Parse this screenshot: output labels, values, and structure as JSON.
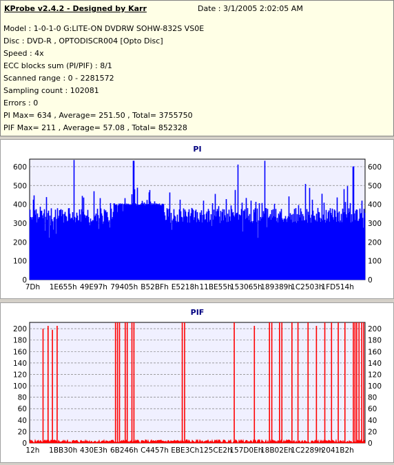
{
  "info": {
    "title": "KProbe v2.4.2 - Designed by Karr",
    "date": "Date : 3/1/2005 2:02:05 AM",
    "lines": [
      "Model : 1-0-1-0 G:LITE-ON DVDRW SOHW-832S  VS0E",
      "Disc : DVD-R , OPTODISCR004 [Opto Disc]",
      "Speed : 4x",
      "ECC blocks sum (PI/PIF) : 8/1",
      "Scanned range : 0 - 2281572",
      "Sampling count : 102081",
      "Errors : 0",
      "PI Max= 634 , Average= 251.50 , Total= 3755750",
      "PIF Max= 211 , Average= 57.08 , Total= 852328"
    ]
  },
  "colors": {
    "pi": "#0000ff",
    "pif": "#ff0000",
    "plot_bg": "#f0f0ff",
    "grid": "#808080",
    "title": "#000080"
  },
  "chart_data": [
    {
      "type": "area",
      "title": "PI",
      "ylim": [
        0,
        640
      ],
      "yticks": [
        0,
        100,
        200,
        300,
        400,
        500,
        600
      ],
      "xticks": [
        "7Dh",
        "1E655h",
        "49E97h",
        "79405h",
        "B52BFh",
        "E5218h",
        "11BE55h",
        "153065h",
        "189389h",
        "1C2503h",
        "1FD514h"
      ],
      "x_range": [
        125,
        2281572
      ],
      "baseline_low": 300,
      "baseline_high": 380,
      "plateau": {
        "from_fraction": 0.25,
        "to_fraction": 0.4,
        "value": 405
      },
      "max": 634,
      "peaks": [
        {
          "at_fraction": 0.131,
          "value": 634
        },
        {
          "at_fraction": 0.309,
          "value": 630
        },
        {
          "at_fraction": 0.62,
          "value": 610
        },
        {
          "at_fraction": 0.7,
          "value": 630
        },
        {
          "at_fraction": 0.964,
          "value": 600
        }
      ]
    },
    {
      "type": "bar",
      "title": "PIF",
      "ylim": [
        0,
        211
      ],
      "yticks": [
        0,
        20,
        40,
        60,
        80,
        100,
        120,
        140,
        160,
        180,
        200
      ],
      "xticks": [
        "12h",
        "1BB30h",
        "430E3h",
        "6B246h",
        "C4457h",
        "EBE3Ch",
        "125CE2h",
        "157D0Eh",
        "18B02Eh",
        "1C2289h",
        "2041B2h"
      ],
      "x_range": [
        18,
        2281572
      ],
      "max": 211,
      "spikes": [
        {
          "at_fraction": 0.04,
          "value": 200
        },
        {
          "at_fraction": 0.055,
          "value": 205
        },
        {
          "at_fraction": 0.068,
          "value": 198
        },
        {
          "at_fraction": 0.082,
          "value": 205
        },
        {
          "at_fraction": 0.256,
          "value": 211
        },
        {
          "at_fraction": 0.262,
          "value": 211
        },
        {
          "at_fraction": 0.268,
          "value": 211
        },
        {
          "at_fraction": 0.285,
          "value": 211
        },
        {
          "at_fraction": 0.291,
          "value": 211
        },
        {
          "at_fraction": 0.305,
          "value": 211
        },
        {
          "at_fraction": 0.311,
          "value": 211
        },
        {
          "at_fraction": 0.455,
          "value": 211
        },
        {
          "at_fraction": 0.462,
          "value": 211
        },
        {
          "at_fraction": 0.61,
          "value": 211
        },
        {
          "at_fraction": 0.67,
          "value": 205
        },
        {
          "at_fraction": 0.715,
          "value": 211
        },
        {
          "at_fraction": 0.722,
          "value": 211
        },
        {
          "at_fraction": 0.745,
          "value": 211
        },
        {
          "at_fraction": 0.752,
          "value": 211
        },
        {
          "at_fraction": 0.782,
          "value": 211
        },
        {
          "at_fraction": 0.8,
          "value": 211
        },
        {
          "at_fraction": 0.83,
          "value": 211
        },
        {
          "at_fraction": 0.855,
          "value": 205
        },
        {
          "at_fraction": 0.88,
          "value": 211
        },
        {
          "at_fraction": 0.9,
          "value": 211
        },
        {
          "at_fraction": 0.92,
          "value": 211
        },
        {
          "at_fraction": 0.94,
          "value": 211
        },
        {
          "at_fraction": 0.965,
          "value": 211
        },
        {
          "at_fraction": 0.97,
          "value": 211
        },
        {
          "at_fraction": 0.975,
          "value": 211
        },
        {
          "at_fraction": 0.982,
          "value": 211
        },
        {
          "at_fraction": 0.99,
          "value": 211
        },
        {
          "at_fraction": 0.996,
          "value": 211
        }
      ],
      "noise_max": 6
    }
  ]
}
